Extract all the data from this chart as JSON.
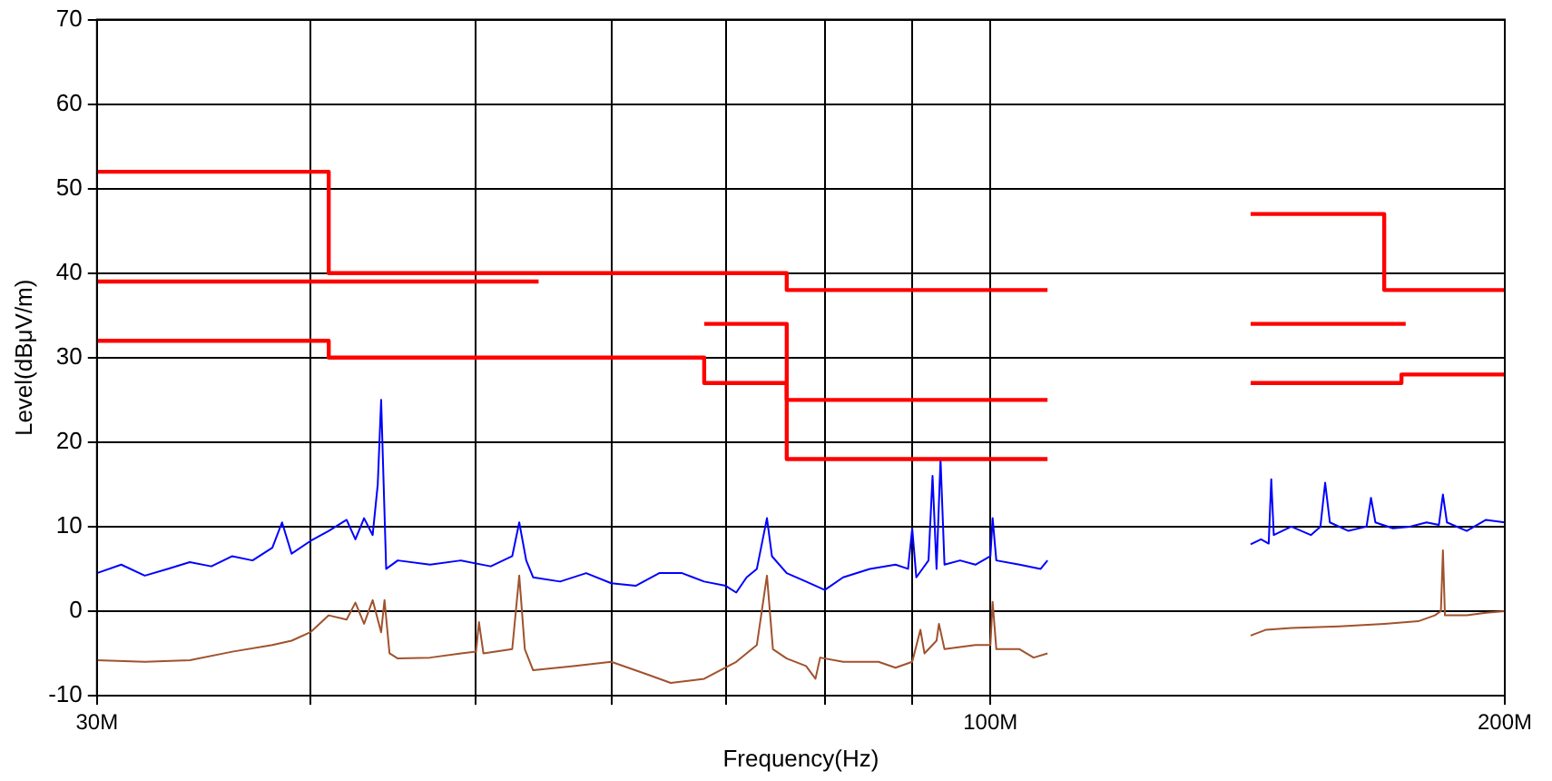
{
  "chart_data": {
    "type": "line",
    "xlabel": "Frequency(Hz)",
    "ylabel": "Level(dBμV/m)",
    "log": "x",
    "grid": true,
    "legend": false,
    "marker": "none",
    "xlim": [
      30000000,
      200000000
    ],
    "ylim": [
      -10,
      70
    ],
    "xticks": [
      {
        "value": 30000000,
        "label": "30M"
      },
      {
        "value": 40000000,
        "label": null
      },
      {
        "value": 50000000,
        "label": null
      },
      {
        "value": 60000000,
        "label": null
      },
      {
        "value": 70000000,
        "label": null
      },
      {
        "value": 80000000,
        "label": null
      },
      {
        "value": 90000000,
        "label": null
      },
      {
        "value": 100000000,
        "label": "100M"
      },
      {
        "value": 200000000,
        "label": "200M"
      }
    ],
    "yticks": [
      -10,
      0,
      10,
      20,
      30,
      40,
      50,
      60,
      70
    ],
    "series": [
      {
        "type": "step",
        "color": "#ff0000",
        "x": [
          30000000,
          41000000,
          76000000,
          108000000
        ],
        "values": [
          52,
          40,
          38,
          38
        ]
      },
      {
        "type": "step",
        "color": "#ff0000",
        "x": [
          30000000,
          54400000
        ],
        "values": [
          39,
          39
        ]
      },
      {
        "type": "step",
        "color": "#ff0000",
        "x": [
          30000000,
          41000000,
          68000000,
          76000000,
          108000000
        ],
        "values": [
          32,
          30,
          27,
          18,
          18
        ]
      },
      {
        "type": "step",
        "color": "#ff0000",
        "x": [
          68000000,
          76000000,
          108000000
        ],
        "values": [
          34,
          25,
          25
        ]
      },
      {
        "type": "step",
        "color": "#ff0000",
        "x": [
          142000000,
          170000000,
          200000000
        ],
        "values": [
          47,
          38,
          38
        ]
      },
      {
        "type": "step",
        "color": "#ff0000",
        "x": [
          142000000,
          175000000
        ],
        "values": [
          34,
          34
        ]
      },
      {
        "type": "step",
        "color": "#ff0000",
        "x": [
          142000000,
          174000000,
          200000000
        ],
        "values": [
          27,
          28,
          28
        ]
      },
      {
        "type": "line",
        "color": "#0000ff",
        "x": [
          30000000,
          31000000,
          32000000,
          33000000,
          34000000,
          35000000,
          36000000,
          37000000,
          38000000,
          38500000,
          39000000,
          40000000,
          41000000,
          42000000,
          42500000,
          43000000,
          43500000,
          43800000,
          44000000,
          44300000,
          45000000,
          47000000,
          49000000,
          51000000,
          52500000,
          53000000,
          53500000,
          54000000,
          56000000,
          58000000,
          60000000,
          62000000,
          64000000,
          66000000,
          68000000,
          70000000,
          71000000,
          72000000,
          73000000,
          74000000,
          74500000,
          76000000,
          78000000,
          80000000,
          82000000,
          85000000,
          88000000,
          89500000,
          90000000,
          90500000,
          92000000,
          92500000,
          93000000,
          93500000,
          94000000,
          96000000,
          98000000,
          100000000,
          100300000,
          100800000,
          104000000,
          107000000,
          108000000,
          125000000,
          142000000,
          144000000,
          145500000,
          146000000,
          146500000,
          150000000,
          154000000,
          156000000,
          157000000,
          158000000,
          162000000,
          166000000,
          167000000,
          168000000,
          172000000,
          176000000,
          180000000,
          183000000,
          184000000,
          185000000,
          190000000,
          195000000,
          200000000
        ],
        "values": [
          4.5,
          5.5,
          4.2,
          5.0,
          5.8,
          5.3,
          6.5,
          6.0,
          7.5,
          10.5,
          6.8,
          8.3,
          9.5,
          10.8,
          8.5,
          11.0,
          9.0,
          15.0,
          25,
          5.0,
          6.0,
          5.5,
          6.0,
          5.3,
          6.5,
          10.5,
          6.0,
          4.0,
          3.5,
          4.5,
          3.3,
          3.0,
          4.5,
          4.5,
          3.5,
          3.0,
          2.2,
          4.0,
          5.0,
          11,
          6.5,
          4.5,
          3.5,
          2.5,
          4.0,
          5.0,
          5.5,
          5.0,
          9.8,
          4.0,
          6.0,
          16,
          5.0,
          18,
          5.5,
          6.0,
          5.5,
          6.5,
          11,
          6.0,
          5.5,
          5.0,
          6.0,
          null,
          7.9,
          8.5,
          8.0,
          15.6,
          9.0,
          10.0,
          9.0,
          10.0,
          15.2,
          10.5,
          9.5,
          10.0,
          13.4,
          10.5,
          9.8,
          10.0,
          10.5,
          10.2,
          13.8,
          10.5,
          9.5,
          10.8,
          10.5
        ]
      },
      {
        "type": "line",
        "color": "#a0522d",
        "x": [
          30000000,
          32000000,
          34000000,
          36000000,
          38000000,
          39000000,
          40000000,
          41000000,
          42000000,
          42500000,
          43000000,
          43500000,
          44000000,
          44200000,
          44500000,
          45000000,
          47000000,
          49000000,
          50000000,
          50200000,
          50500000,
          52500000,
          53000000,
          53400000,
          54000000,
          57000000,
          60000000,
          63000000,
          65000000,
          68000000,
          71000000,
          73000000,
          74000000,
          74600000,
          76000000,
          78000000,
          79000000,
          79500000,
          82000000,
          86000000,
          88000000,
          90000000,
          91000000,
          91500000,
          93000000,
          93300000,
          94000000,
          98000000,
          100000000,
          100300000,
          100800000,
          104000000,
          106000000,
          108000000,
          125000000,
          142000000,
          145000000,
          150000000,
          160000000,
          170000000,
          178000000,
          182000000,
          183500000,
          184000000,
          184500000,
          190000000,
          195000000,
          200000000
        ],
        "values": [
          -5.8,
          -6.0,
          -5.8,
          -4.8,
          -4.0,
          -3.5,
          -2.5,
          -0.5,
          -1.0,
          1.0,
          -1.5,
          1.3,
          -2.5,
          1.3,
          -5.0,
          -5.6,
          -5.5,
          -5.0,
          -4.8,
          -1.3,
          -5.0,
          -4.5,
          4.2,
          -4.5,
          -7.0,
          -6.5,
          -6.0,
          -7.5,
          -8.5,
          -8.0,
          -6.0,
          -4.0,
          4.2,
          -4.5,
          -5.6,
          -6.5,
          -8.0,
          -5.5,
          -6.0,
          -6.0,
          -6.7,
          -6.0,
          -2.2,
          -5.0,
          -3.5,
          -1.5,
          -4.5,
          -4.0,
          -4.0,
          1.1,
          -4.5,
          -4.5,
          -5.5,
          -5.0,
          null,
          -2.9,
          -2.2,
          -2.0,
          -1.8,
          -1.5,
          -1.2,
          -0.5,
          0.0,
          7.2,
          -0.5,
          -0.5,
          -0.2,
          0.0
        ]
      }
    ]
  }
}
